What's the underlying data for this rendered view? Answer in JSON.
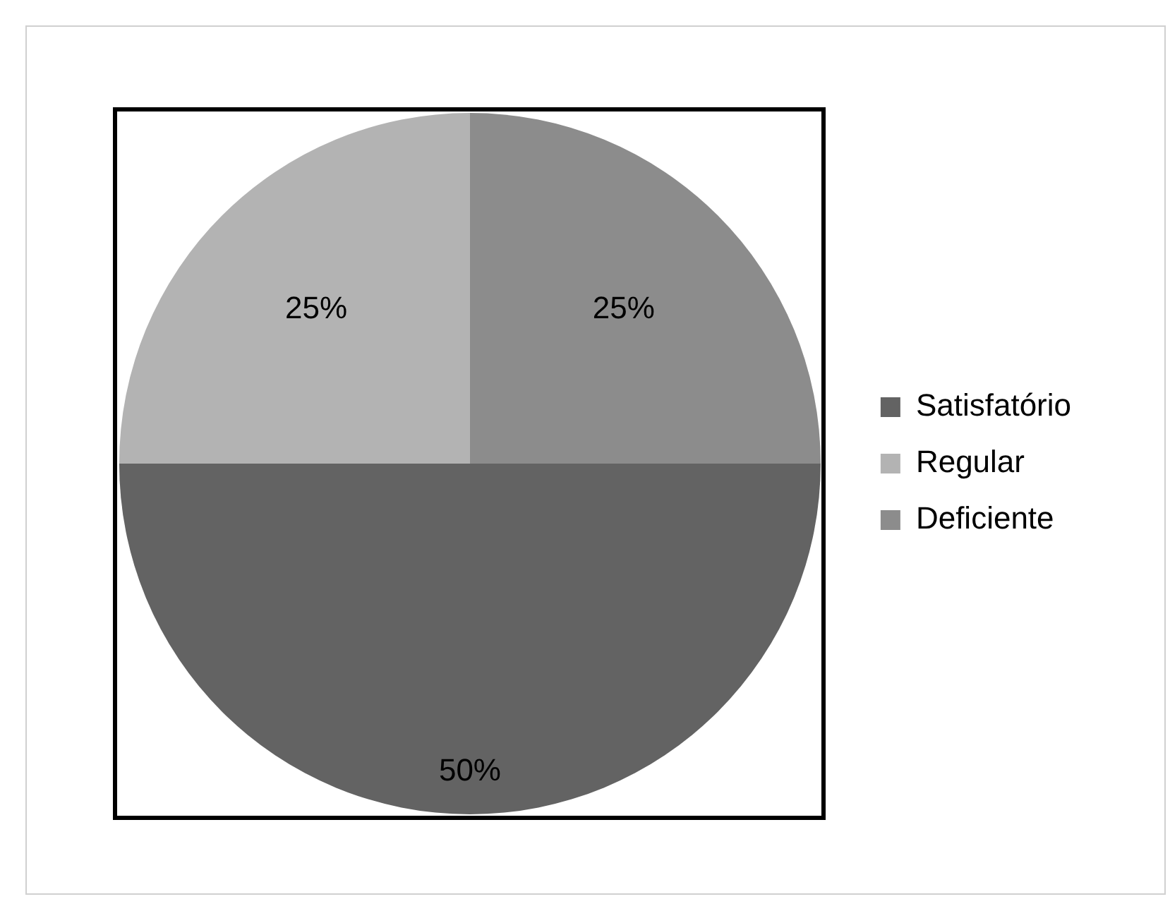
{
  "chart_data": {
    "type": "pie",
    "categories": [
      "Satisfatório",
      "Regular",
      "Deficiente"
    ],
    "values": [
      50,
      25,
      25
    ],
    "colors": [
      "#636363",
      "#b3b3b3",
      "#8c8c8c"
    ],
    "value_labels": [
      "50%",
      "25%",
      "25%"
    ],
    "legend": "right"
  }
}
